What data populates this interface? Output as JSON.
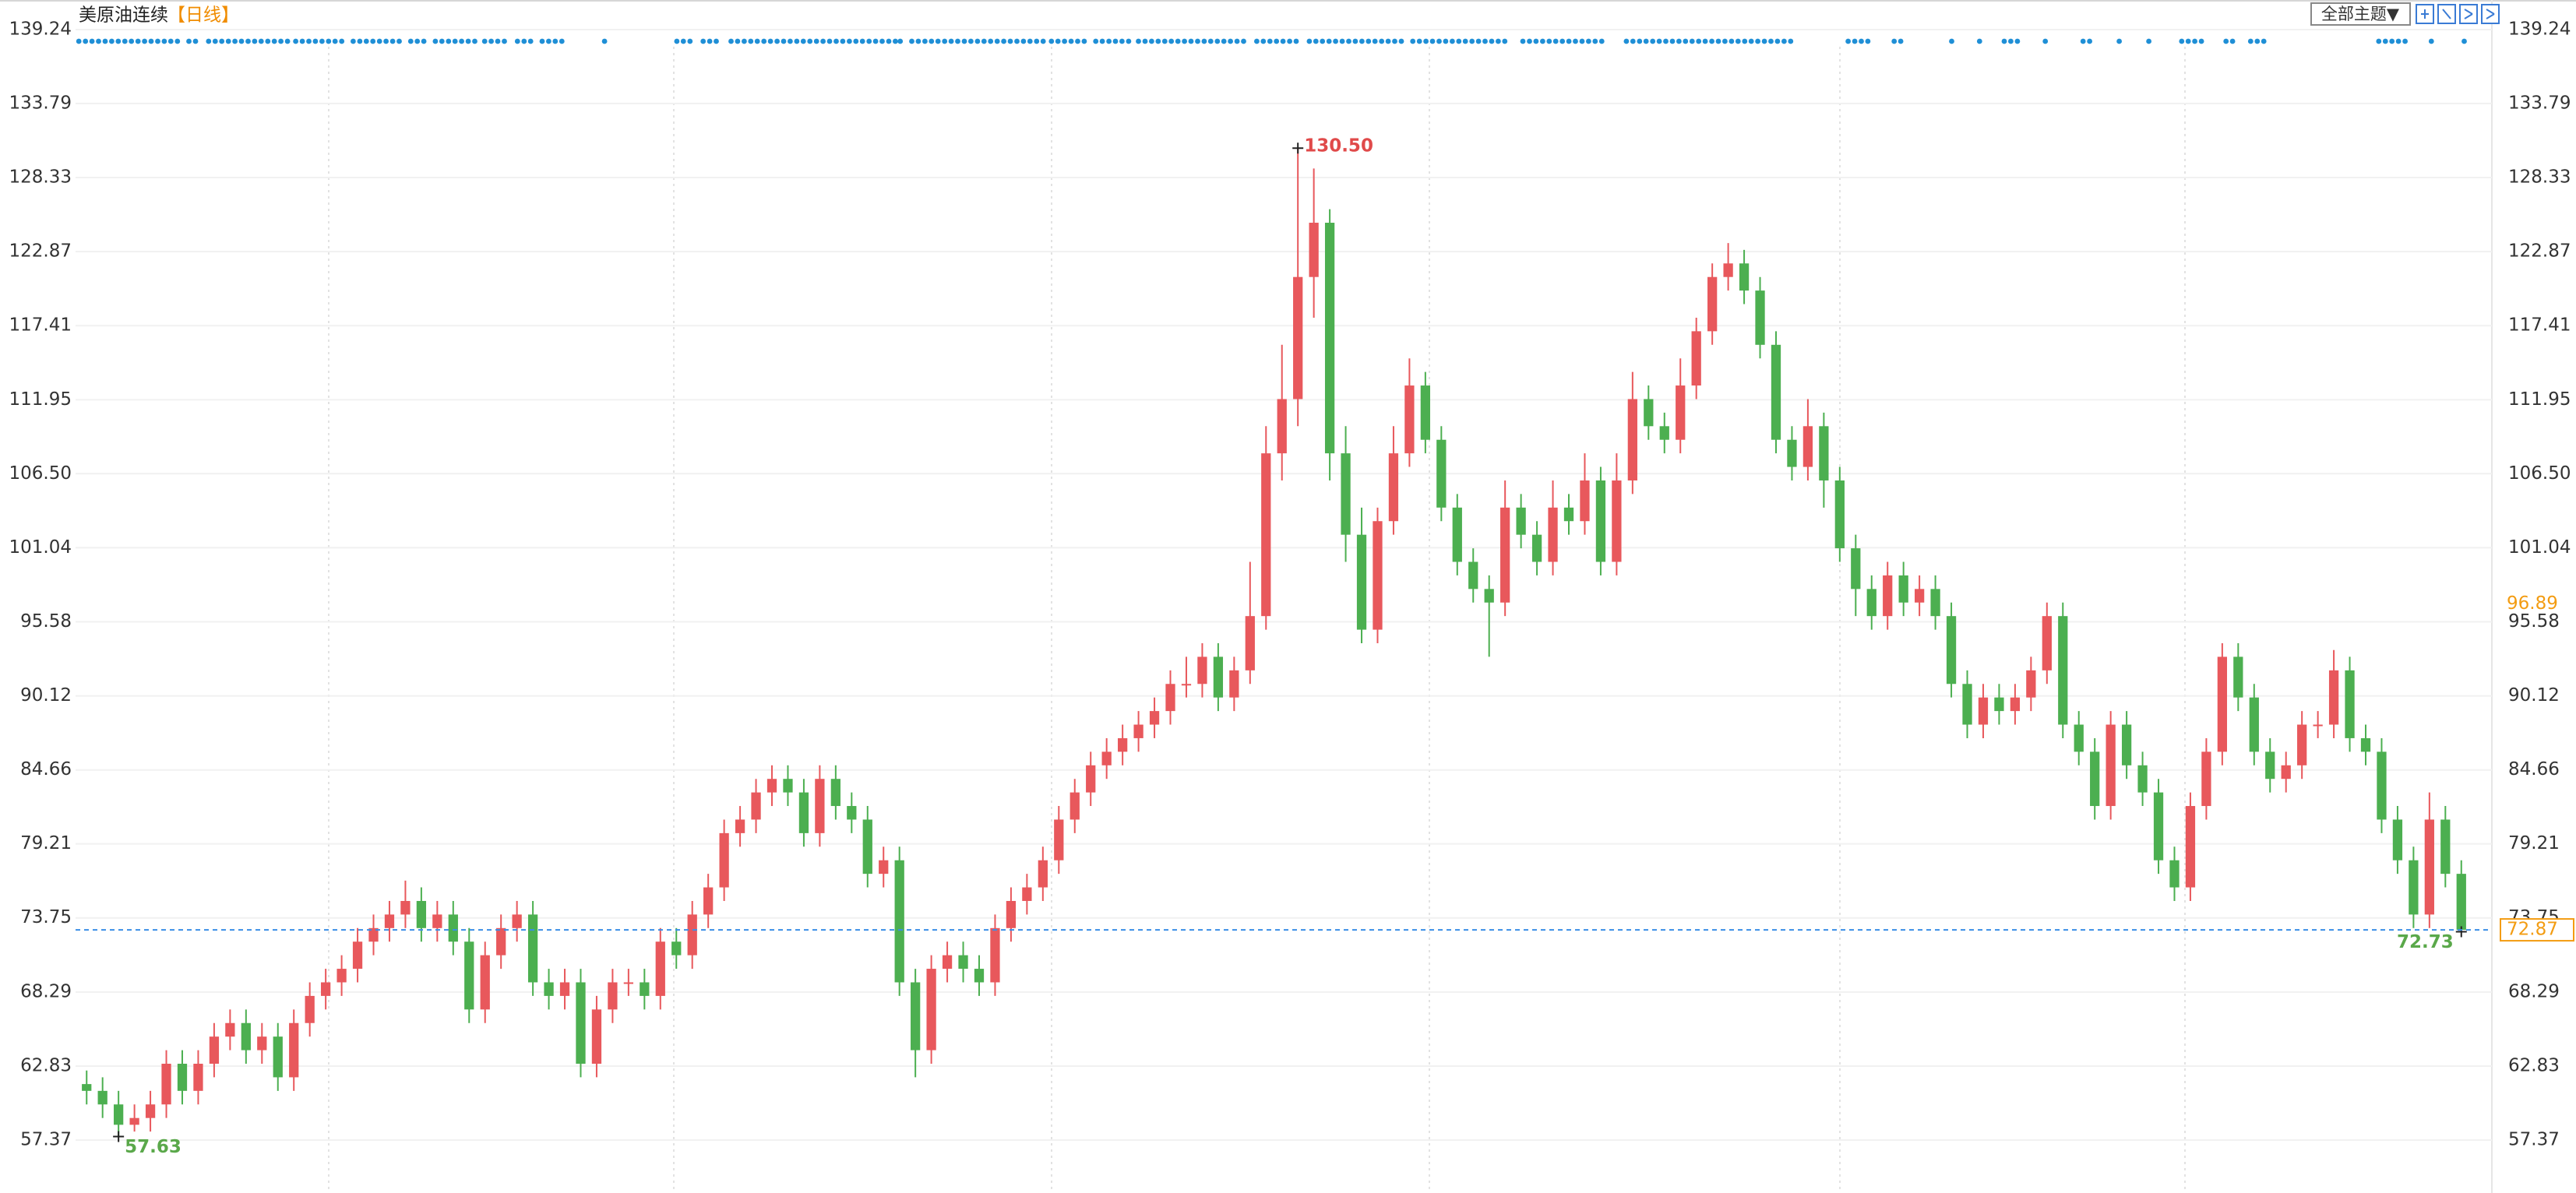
{
  "header": {
    "symbol": "美原油连续",
    "period": "【日线】",
    "theme_button": "全部主题▼"
  },
  "chart_data": {
    "type": "candlestick",
    "ylim": [
      53.47,
      141.42
    ],
    "yticks": [
      139.24,
      133.79,
      128.33,
      122.87,
      117.41,
      111.95,
      {
        "value": 106.5,
        "label": "106.50"
      },
      101.04,
      95.58,
      90.12,
      84.66,
      79.21,
      73.75,
      68.29,
      62.83,
      57.37
    ],
    "grid": true,
    "up_color": "#e8585c",
    "down_color": "#4caf50",
    "open": [
      61.5,
      61,
      60,
      58.5,
      59,
      60,
      63,
      61,
      63,
      65,
      66,
      64,
      65,
      62,
      66,
      68,
      69,
      70,
      72,
      73,
      74,
      75,
      73,
      74,
      72,
      67,
      71,
      73,
      74,
      69,
      68,
      69,
      63,
      67,
      69,
      69,
      68,
      72,
      71,
      74,
      76,
      80,
      81,
      83,
      84,
      83,
      80,
      84,
      82,
      81,
      77,
      78,
      69,
      64,
      70,
      71,
      70,
      69,
      73,
      75,
      76,
      78,
      81,
      83,
      85,
      86,
      87,
      88,
      89,
      91,
      91,
      93,
      90,
      92,
      96,
      108,
      112,
      121,
      125,
      108,
      102,
      95,
      103,
      108,
      113,
      109,
      104,
      100,
      98,
      97,
      104,
      102,
      100,
      104,
      103,
      106,
      100,
      106,
      112,
      110,
      109,
      113,
      117,
      121,
      122,
      120,
      116,
      109,
      107,
      110,
      106,
      101,
      98,
      96,
      99,
      97,
      98,
      96,
      91,
      88,
      90,
      89,
      90,
      92,
      96,
      88,
      86,
      82,
      88,
      85,
      83,
      78,
      76,
      82,
      86,
      93,
      90,
      86,
      84,
      85,
      88,
      88,
      92,
      87,
      86,
      81,
      78,
      74,
      81,
      77
    ],
    "high": [
      62.5,
      62,
      61,
      60,
      61,
      64,
      64,
      64,
      66,
      67,
      67,
      66,
      66,
      67,
      69,
      70,
      71,
      73,
      74,
      75,
      76.5,
      76,
      75,
      75,
      73,
      72,
      74,
      75,
      75,
      70,
      70,
      70,
      68,
      70,
      70,
      70,
      73,
      73,
      75,
      77,
      81,
      82,
      84,
      85,
      85,
      84,
      85,
      85,
      83,
      82,
      79,
      79,
      70,
      71,
      72,
      72,
      71,
      74,
      76,
      77,
      79,
      82,
      84,
      86,
      87,
      88,
      89,
      90,
      92,
      93,
      94,
      94,
      93,
      100,
      110,
      116,
      130.5,
      129,
      126,
      110,
      104,
      104,
      110,
      115,
      114,
      110,
      105,
      101,
      99,
      106,
      105,
      103,
      106,
      105,
      108,
      107,
      108,
      114,
      113,
      111,
      115,
      118,
      122,
      123.5,
      123,
      121,
      117,
      110,
      112,
      111,
      107,
      102,
      99,
      100,
      100,
      99,
      99,
      97,
      92,
      91,
      91,
      91,
      93,
      97,
      97,
      89,
      87,
      89,
      89,
      86,
      84,
      79,
      83,
      87,
      94,
      94,
      91,
      87,
      86,
      89,
      89,
      93.5,
      93,
      88,
      87,
      82,
      79,
      83,
      82,
      78
    ],
    "low": [
      60,
      59,
      57.63,
      58,
      58,
      59,
      60,
      60,
      62,
      64,
      63,
      63,
      61,
      61,
      65,
      67,
      68,
      69,
      71,
      72,
      73,
      72,
      72,
      71,
      66,
      66,
      70,
      72,
      68,
      67,
      67,
      62,
      62,
      66,
      68,
      67,
      67,
      70,
      70,
      73,
      75,
      79,
      80,
      82,
      82,
      79,
      79,
      81,
      80,
      76,
      76,
      68,
      62,
      63,
      69,
      69,
      68,
      68,
      72,
      74,
      75,
      77,
      80,
      82,
      84,
      85,
      86,
      87,
      88,
      90,
      90,
      89,
      89,
      91,
      95,
      106,
      110,
      118,
      106,
      100,
      94,
      94,
      102,
      107,
      108,
      103,
      99,
      97,
      93,
      96,
      101,
      99,
      99,
      102,
      102,
      99,
      99,
      105,
      109,
      108,
      108,
      112,
      116,
      120,
      119,
      115,
      108,
      106,
      106,
      104,
      100,
      96,
      95,
      95,
      96,
      96,
      95,
      90,
      87,
      87,
      88,
      88,
      89,
      91,
      87,
      85,
      81,
      81,
      84,
      82,
      77,
      75,
      75,
      81,
      85,
      89,
      85,
      83,
      83,
      84,
      87,
      87,
      86,
      85,
      80,
      77,
      73,
      73,
      76,
      72.73
    ],
    "close": [
      61,
      60,
      58.5,
      59,
      60,
      63,
      61,
      63,
      65,
      66,
      64,
      65,
      62,
      66,
      68,
      69,
      70,
      72,
      73,
      74,
      75,
      73,
      74,
      72,
      67,
      71,
      73,
      74,
      69,
      68,
      69,
      63,
      67,
      69,
      69,
      68,
      72,
      71,
      74,
      76,
      80,
      81,
      83,
      84,
      83,
      80,
      84,
      82,
      81,
      77,
      78,
      69,
      64,
      70,
      71,
      70,
      69,
      73,
      75,
      76,
      78,
      81,
      83,
      85,
      86,
      87,
      88,
      89,
      91,
      91,
      93,
      90,
      92,
      96,
      108,
      112,
      121,
      125,
      108,
      102,
      95,
      103,
      108,
      113,
      109,
      104,
      100,
      98,
      97,
      104,
      102,
      100,
      104,
      103,
      106,
      100,
      106,
      112,
      110,
      109,
      113,
      117,
      121,
      122,
      120,
      116,
      109,
      107,
      110,
      106,
      101,
      98,
      96,
      99,
      97,
      98,
      96,
      91,
      88,
      90,
      89,
      90,
      92,
      96,
      88,
      86,
      82,
      88,
      85,
      83,
      78,
      76,
      82,
      86,
      93,
      90,
      86,
      84,
      85,
      88,
      88,
      92,
      87,
      86,
      81,
      78,
      74,
      81,
      77,
      72.87
    ],
    "annotations": [
      {
        "value": 130.5,
        "label": "130.50"
      },
      57.63,
      72.73
    ],
    "crosshair_price": 96.89,
    "last_price": 72.87
  }
}
